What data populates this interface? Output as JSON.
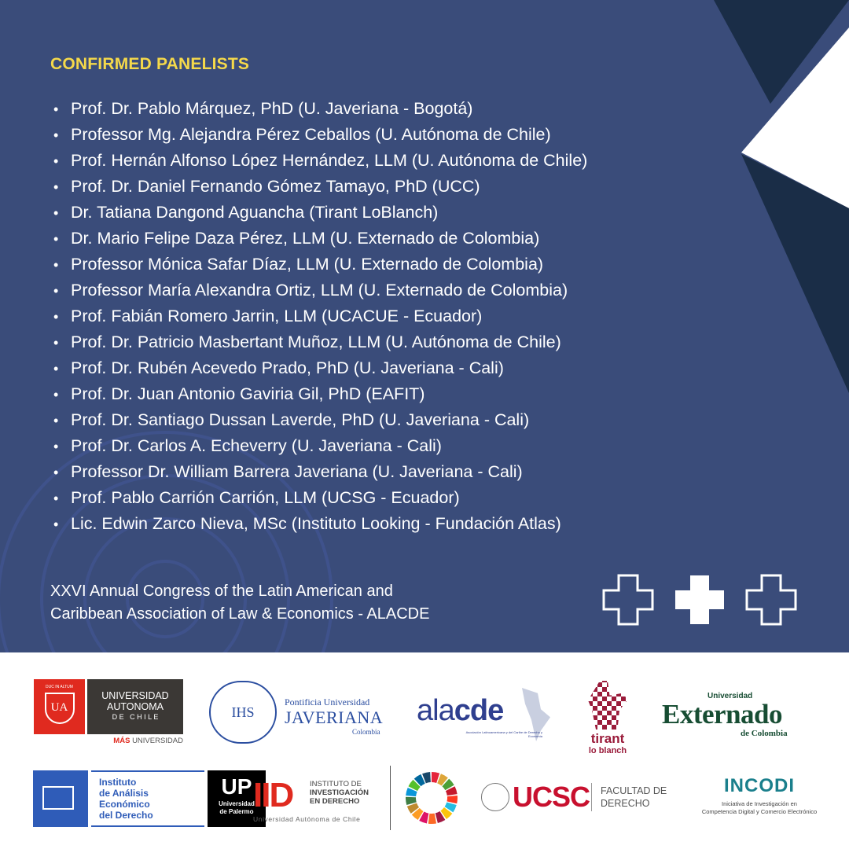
{
  "heading": "CONFIRMED PANELISTS",
  "panelists": [
    "Prof. Dr. Pablo Márquez, PhD (U. Javeriana - Bogotá)",
    "Professor Mg. Alejandra Pérez Ceballos (U. Autónoma de Chile)",
    "Prof. Hernán Alfonso López Hernández, LLM (U. Autónoma de Chile)",
    "Prof. Dr. Daniel Fernando Gómez Tamayo, PhD (UCC)",
    "Dr. Tatiana Dangond Aguancha (Tirant LoBlanch)",
    "Dr. Mario Felipe Daza Pérez, LLM (U. Externado de Colombia)",
    "Professor Mónica Safar Díaz, LLM (U. Externado de Colombia)",
    "Professor María Alexandra Ortiz, LLM (U. Externado de Colombia)",
    "Prof. Fabián Romero Jarrin, LLM (UCACUE - Ecuador)",
    "Prof. Dr. Patricio Masbertant Muñoz, LLM (U. Autónoma de Chile)",
    "Prof. Dr. Rubén Acevedo Prado, PhD (U. Javeriana - Cali)",
    "Prof. Dr. Juan Antonio Gaviria Gil, PhD (EAFIT)",
    "Prof. Dr. Santiago Dussan Laverde, PhD (U. Javeriana - Cali)",
    "Prof. Dr. Carlos A. Echeverry (U. Javeriana - Cali)",
    "Professor Dr. William Barrera Javeriana (U. Javeriana - Cali)",
    "Prof. Pablo Carrión Carrión, LLM (UCSG - Ecuador)",
    "Lic. Edwin Zarco Nieva, MSc (Instituto Looking - Fundación Atlas)"
  ],
  "congress": [
    "XXVI Annual Congress of the Latin American and",
    "Caribbean Association of Law & Economics - ALACDE"
  ],
  "colors": {
    "background": "#3a4c7a",
    "dark": "#1a2d47",
    "heading": "#f5d94a"
  },
  "logos": {
    "ua": {
      "badge": "UA",
      "motto": "DUC IN ALTUM",
      "name1": "UNIVERSIDAD",
      "name2": "AUTONOMA",
      "name3": "D E   C H I L E",
      "tag1": "MÁS",
      "tag2": "UNIVERSIDAD"
    },
    "javeriana": {
      "seal": "IHS",
      "line1": "Pontificia Universidad",
      "line2": "JAVERIANA",
      "line3": "Colombia"
    },
    "alacde": {
      "a": "ala",
      "b": "cde",
      "sub": "Asociación Latinoamericana y del Caribe de Derecho y Economía"
    },
    "tirant": {
      "line1": "tirant",
      "line2": "lo blanch"
    },
    "externado": {
      "line1": "Universidad",
      "line2": "Externado",
      "line3": "de Colombia"
    },
    "iaed": {
      "l1": "Instituto",
      "l2": "de Análisis",
      "l3": "Económico",
      "l4": "del Derecho"
    },
    "up": {
      "big": "UP",
      "l1": "Universidad",
      "l2": "de Palermo"
    },
    "iid": {
      "big": "IID",
      "l1": "INSTITUTO DE",
      "l2": "INVESTIGACIÓN",
      "l3": "EN DERECHO",
      "sub": "Universidad Autónoma de Chile"
    },
    "ucsc": {
      "big": "UCSC",
      "l1": "FACULTAD DE",
      "l2": "DERECHO"
    },
    "incodi": {
      "big": "INCODI",
      "l1": "Iniciativa de Investigación en",
      "l2": "Competencia Digital y Comercio Electrónico"
    }
  }
}
